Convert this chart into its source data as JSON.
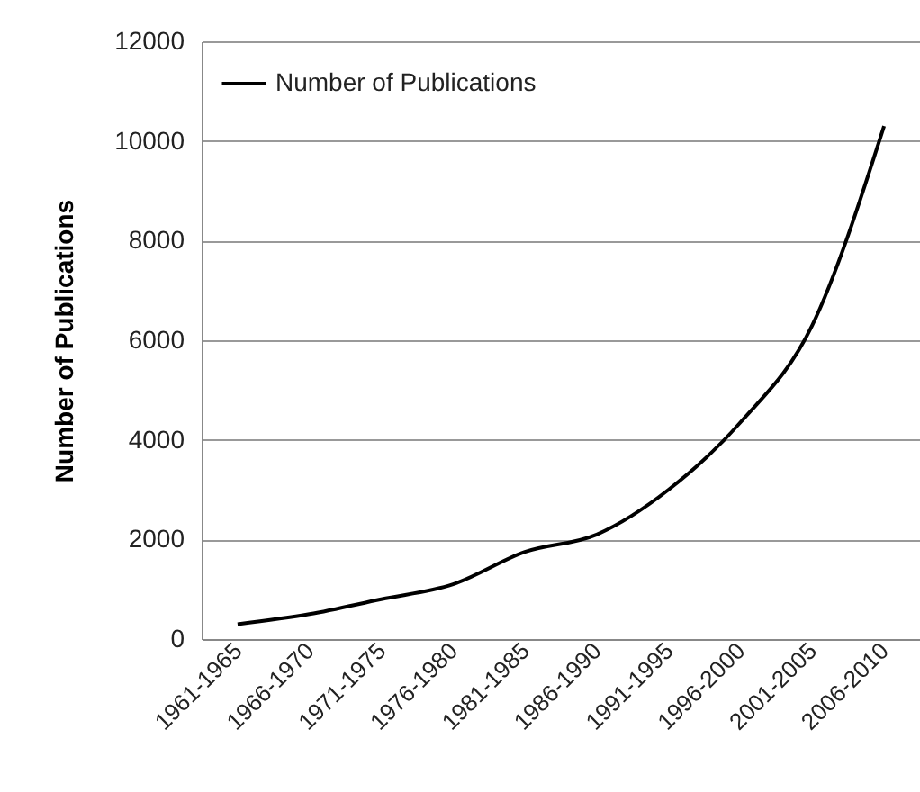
{
  "chart_data": {
    "type": "line",
    "ylabel": "Number of Publications",
    "categories": [
      "1961-1965",
      "1966-1970",
      "1971-1975",
      "1976-1980",
      "1981-1985",
      "1986-1990",
      "1991-1995",
      "1996-2000",
      "2001-2005",
      "2006-2010"
    ],
    "series": [
      {
        "name": "Number of Publications",
        "color": "#000000",
        "values": [
          300,
          500,
          800,
          1100,
          1750,
          2100,
          3000,
          4350,
          6300,
          10300
        ]
      }
    ],
    "ylim": [
      0,
      12000
    ],
    "yticks": [
      0,
      2000,
      4000,
      6000,
      8000,
      10000,
      12000
    ],
    "grid": "y",
    "legend": "top left"
  }
}
